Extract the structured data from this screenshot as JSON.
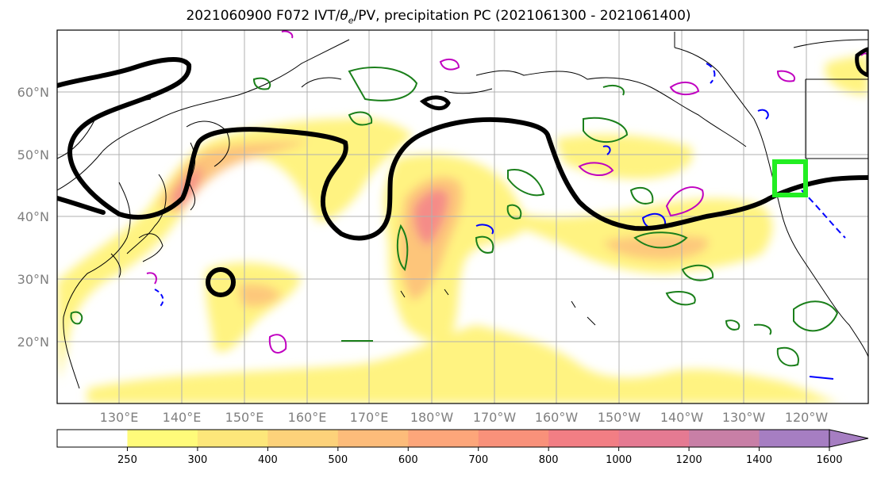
{
  "title": "2021060900 F072 IVT/θe/PV, precipitation PC (2021061300 - 2021061400)",
  "title_parts": {
    "prefix": "2021060900 F072 IVT/",
    "theta": "θ",
    "sub": "e",
    "suffix": "/PV, precipitation PC (2021061300 - 2021061400)"
  },
  "map": {
    "latitude_labels": [
      "60°N",
      "50°N",
      "40°N",
      "30°N",
      "20°N"
    ],
    "longitude_labels": [
      "130°E",
      "140°E",
      "150°E",
      "160°E",
      "170°E",
      "180°W",
      "170°W",
      "160°W",
      "150°W",
      "140°W",
      "130°W",
      "120°W"
    ],
    "colors": {
      "coastline": "#000000",
      "grid": "#b0b0b0",
      "pv_contour": "#000000",
      "theta_e_contour_green": "#1a7f1a",
      "contour_blue": "#0000ff",
      "contour_magenta": "#c000c0",
      "highlight_box": "#22ee22"
    }
  },
  "colorbar": {
    "labels": [
      "250",
      "300",
      "400",
      "500",
      "600",
      "700",
      "800",
      "1000",
      "1200",
      "1400",
      "1600"
    ],
    "colors": [
      "#ffffff",
      "#fffb7a",
      "#fde77a",
      "#fdd27a",
      "#fdbc7a",
      "#fda67a",
      "#f9917a",
      "#f27e84",
      "#e57a92",
      "#c87fa6",
      "#a67ec2"
    ]
  }
}
